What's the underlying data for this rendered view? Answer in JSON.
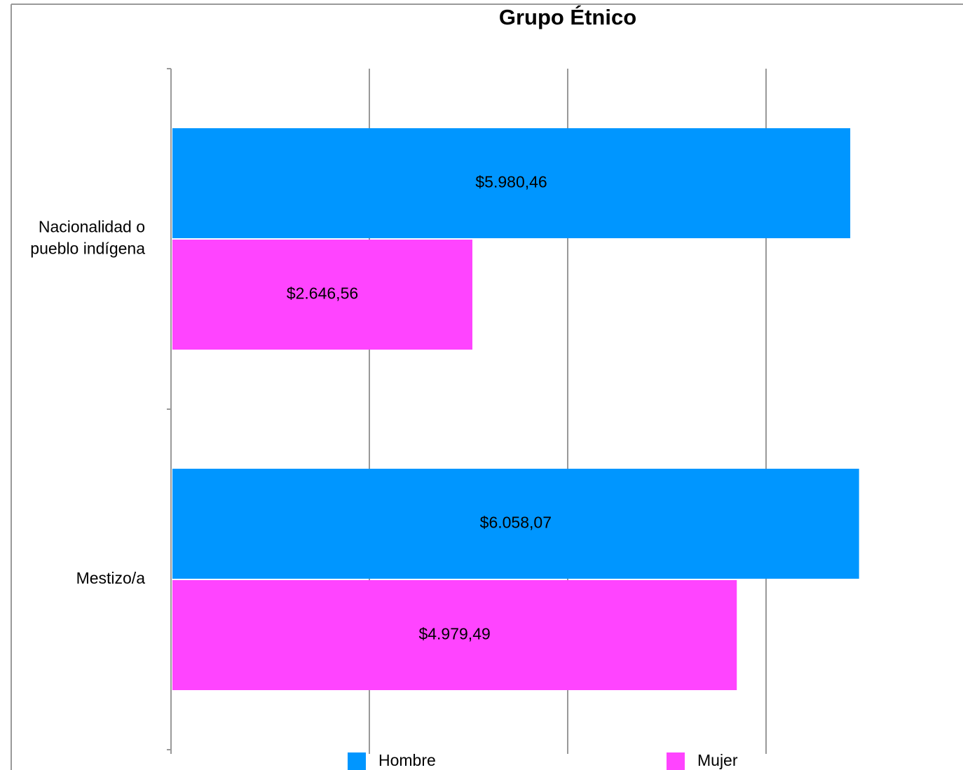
{
  "chart_data": {
    "type": "barh",
    "title": "Grupo Étnico",
    "categories": [
      "Nacionalidad o pueblo indígena",
      "Mestizo/a"
    ],
    "series": [
      {
        "name": "Hombre",
        "color": "#0096ff",
        "values": [
          5980.46,
          6058.07
        ],
        "value_labels": [
          "$5.980,46",
          "$6.058,07"
        ]
      },
      {
        "name": "Mujer",
        "color": "#ff44ff",
        "values": [
          2646.56,
          4979.49
        ],
        "value_labels": [
          "$2.646,56",
          "$4.979,49"
        ]
      }
    ],
    "xlim": [
      0,
      7000
    ],
    "xticks": [
      0,
      1750,
      3500,
      5250,
      7000
    ],
    "grid": true,
    "legend": "bottom"
  }
}
